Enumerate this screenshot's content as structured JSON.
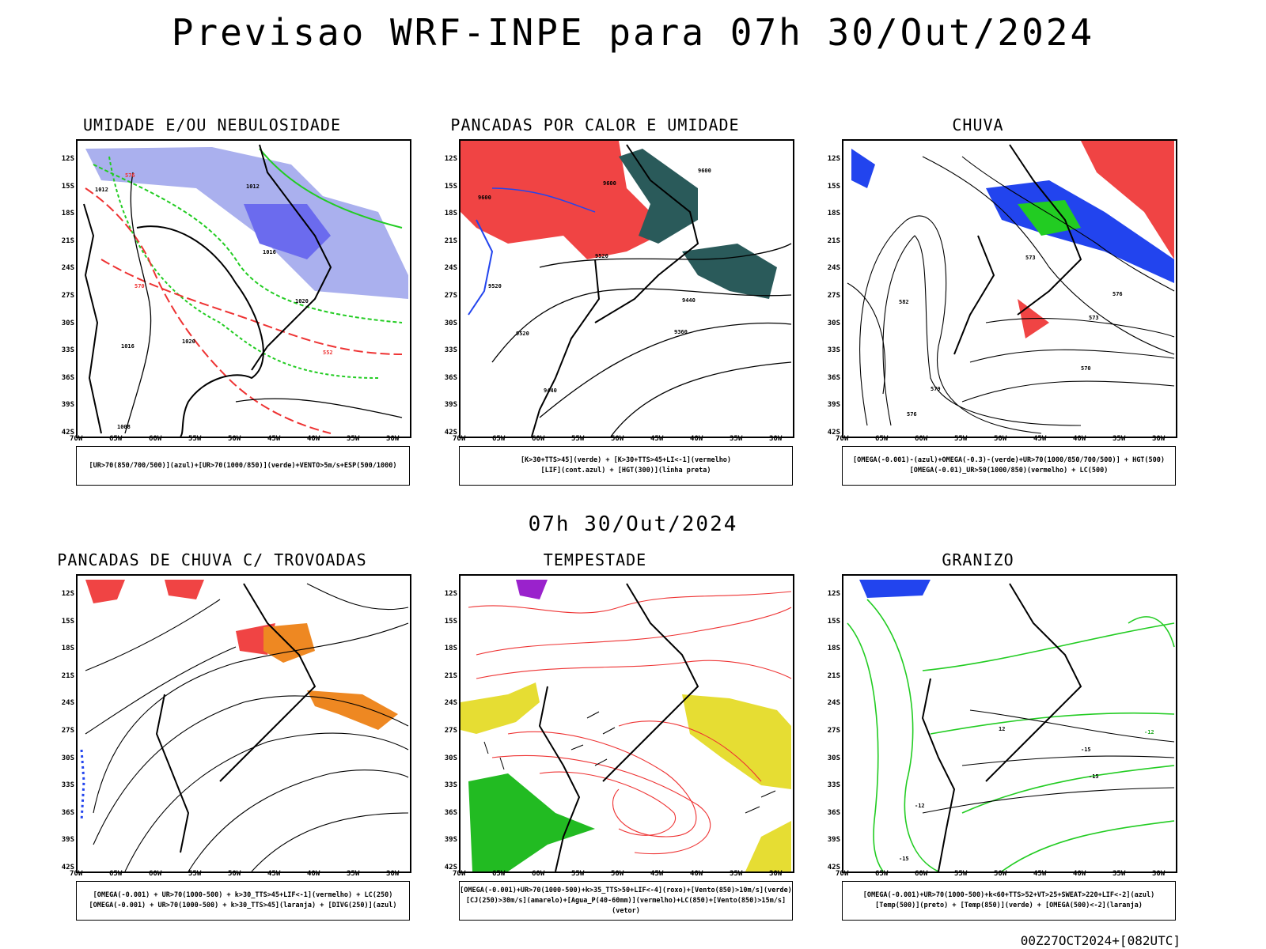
{
  "title": "Previsao WRF-INPE  para 07h 30/Out/2024",
  "mid_date": "07h 30/Out/2024",
  "run_tag": "00Z27OCT2024+[082UTC]",
  "axes": {
    "lat_labels": [
      "12S",
      "15S",
      "18S",
      "21S",
      "24S",
      "27S",
      "30S",
      "33S",
      "36S",
      "39S",
      "42S"
    ],
    "lon_labels": [
      "70W",
      "65W",
      "60W",
      "55W",
      "50W",
      "45W",
      "40W",
      "35W",
      "30W"
    ]
  },
  "panels": [
    {
      "title": "UMIDADE E/OU NEBULOSIDADE",
      "legend": [
        "[UR>70(850/700/500)](azul)+[UR>70(1000/850)](verde)+VENTO>5m/s+ESP(500/1000)"
      ],
      "contour_labels": [
        "1012",
        "1012",
        "1016",
        "1020",
        "1016",
        "1020",
        "1008",
        "570",
        "576",
        "552"
      ]
    },
    {
      "title": "PANCADAS POR CALOR E UMIDADE",
      "legend": [
        "[K>30+TTS>45](verde) + [K>30+TTS>45+LI<-1](vermelho)",
        "[LIF](cont.azul) + [HGT(300)](linha preta)"
      ],
      "contour_labels": [
        "9600",
        "9600",
        "9600",
        "9520",
        "9520",
        "9440",
        "9360",
        "9440",
        "9520"
      ]
    },
    {
      "title": "CHUVA",
      "legend": [
        "[OMEGA(-0.001)-(azul)+OMEGA(-0.3)-(verde)+UR>70(1000/850/700/500)] + HGT(500)",
        "[OMEGA(-0.01)_UR>50(1000/850)(vermelho) + LC(500)"
      ],
      "contour_labels": [
        "582",
        "579",
        "576",
        "573",
        "570",
        "576",
        "573"
      ]
    },
    {
      "title": "PANCADAS DE CHUVA C/ TROVOADAS",
      "legend": [
        "[OMEGA(-0.001) + UR>70(1000-500) + k>30_TTS>45+LIF<-1](vermelho) + LC(250)",
        "[OMEGA(-0.001) + UR>70(1000-500) + k>30_TTS>45](laranja) + [DIVG(250)](azul)"
      ],
      "contour_labels": []
    },
    {
      "title": "TEMPESTADE",
      "legend": [
        "[OMEGA(-0.001)+UR>70(1000-500)+k>35_TTS>50+LIF<-4](roxo)+[Vento(850)>10m/s](verde)",
        "[CJ(250)>30m/s](amarelo)+[Agua_P(40-60mm)](vermelho)+LC(850)+[Vento(850)>15m/s](vetor)"
      ],
      "contour_labels": []
    },
    {
      "title": "GRANIZO",
      "legend": [
        "[OMEGA(-0.001)+UR>70(1000-500)+k<60+TTS>52+VT>25+SWEAT>220+LIF<-2](azul)",
        "[Temp(500)](preto) + [Temp(850)](verde) + [OMEGA(500)<-2](laranja)"
      ],
      "contour_labels": [
        "12",
        "-15",
        "-15",
        "-12",
        "-15",
        "-12"
      ]
    }
  ]
}
